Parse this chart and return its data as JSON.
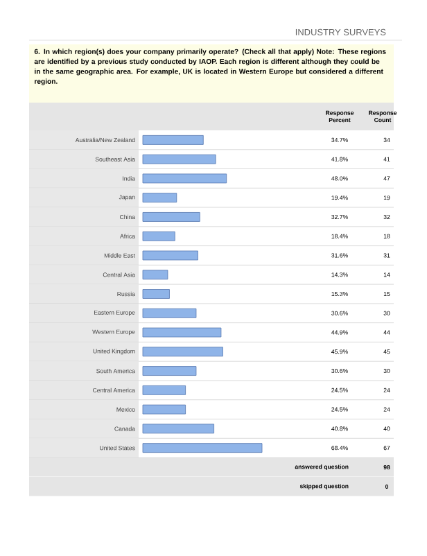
{
  "chart_data": {
    "type": "bar",
    "orientation": "horizontal",
    "subtitle": "INDUSTRY SURVEYS",
    "title": "6. In which region(s) does your company primarily operate? (Check all that apply) Note: These regions are identified by a previous study conducted by IAOP. Each region is different although they could be in the same geographic area. For example, UK is located in Western Europe but considered a different region.",
    "categories": [
      "Australia/New Zealand",
      "Southeast Asia",
      "India",
      "Japan",
      "China",
      "Africa",
      "Middle East",
      "Central Asia",
      "Russia",
      "Eastern Europe",
      "Western Europe",
      "United Kingdom",
      "South America",
      "Central America",
      "Mexico",
      "Canada",
      "United States"
    ],
    "values": [
      34.7,
      41.8,
      48.0,
      19.4,
      32.7,
      18.4,
      31.6,
      14.3,
      15.3,
      30.6,
      44.9,
      45.9,
      30.6,
      24.5,
      24.5,
      40.8,
      68.4
    ],
    "value_labels": [
      "34.7%",
      "41.8%",
      "48.0%",
      "19.4%",
      "32.7%",
      "18.4%",
      "31.6%",
      "14.3%",
      "15.3%",
      "30.6%",
      "44.9%",
      "45.9%",
      "30.6%",
      "24.5%",
      "24.5%",
      "40.8%",
      "68.4%"
    ],
    "color": "#8fb4e8",
    "tick_labels": "y",
    "annotations": [
      "Response Percent",
      "Response Count",
      "34",
      "41",
      "47",
      "19",
      "32",
      "18",
      "31",
      "14",
      "15",
      "30",
      "44",
      "45",
      "30",
      "24",
      "24",
      "40",
      "67",
      "answered question",
      "98",
      "skipped question",
      "0"
    ]
  }
}
